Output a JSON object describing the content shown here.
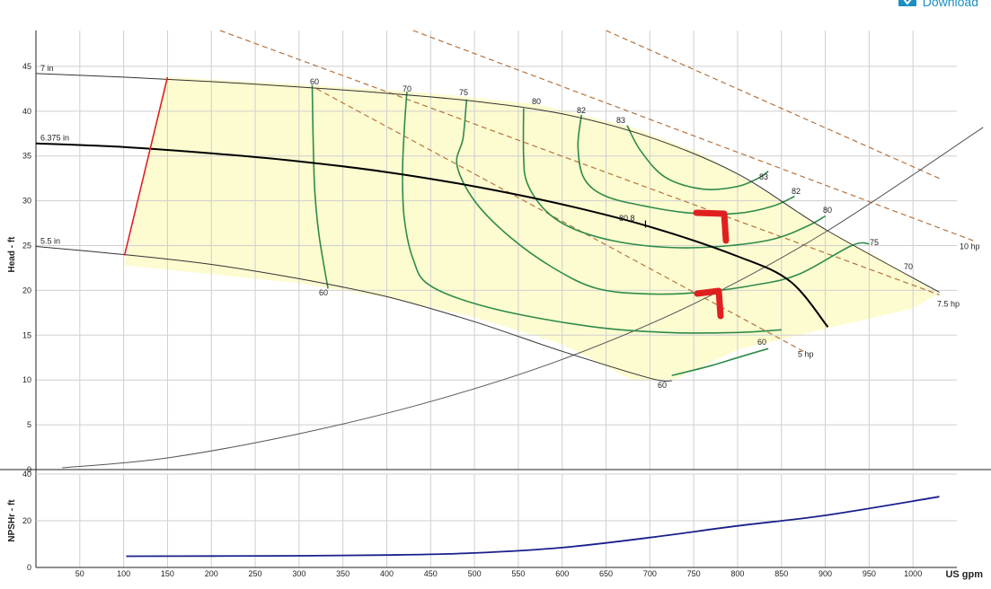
{
  "download": {
    "label": "Download"
  },
  "colors": {
    "envelope": "#fdfbd0",
    "grid": "#cfcfcf",
    "impeller": "#333333",
    "design": "#000000",
    "efficiency": "#2e8b4a",
    "power": "#b5733e",
    "system": "#555555",
    "min_dia": "#e02020",
    "npsh": "#1a1f8c",
    "annotation": "#e02020"
  },
  "chart_data": [
    {
      "type": "line",
      "title": "",
      "xlabel": "US gpm",
      "ylabel": "Head - ft",
      "xlim": [
        0,
        1050
      ],
      "ylim": [
        0,
        49
      ],
      "x_ticks": [
        50,
        100,
        150,
        200,
        250,
        300,
        350,
        400,
        450,
        500,
        550,
        600,
        650,
        700,
        750,
        800,
        850,
        900,
        950,
        1000
      ],
      "y_ticks": [
        0,
        5,
        10,
        15,
        20,
        25,
        30,
        35,
        40,
        45
      ],
      "impeller_curves": [
        {
          "label": "7 in",
          "points": [
            [
              0,
              44.2
            ],
            [
              100,
              43.8
            ],
            [
              200,
              43.3
            ],
            [
              300,
              42.7
            ],
            [
              400,
              42
            ],
            [
              500,
              41.1
            ],
            [
              600,
              39.7
            ],
            [
              700,
              37.1
            ],
            [
              800,
              33
            ],
            [
              900,
              26.8
            ],
            [
              1030,
              19.8
            ]
          ]
        },
        {
          "label": "6.375 in",
          "points": [
            [
              0,
              36.4
            ],
            [
              100,
              36
            ],
            [
              200,
              35.3
            ],
            [
              300,
              34.4
            ],
            [
              400,
              33.2
            ],
            [
              500,
              31.6
            ],
            [
              600,
              29.6
            ],
            [
              700,
              27.1
            ],
            [
              800,
              23.8
            ],
            [
              860,
              21
            ],
            [
              903,
              15.9
            ]
          ]
        },
        {
          "label": "5.5 in",
          "points": [
            [
              0,
              24.9
            ],
            [
              100,
              24
            ],
            [
              200,
              22.9
            ],
            [
              300,
              21.3
            ],
            [
              400,
              19.3
            ],
            [
              500,
              16.5
            ],
            [
              600,
              13.2
            ],
            [
              700,
              10.2
            ],
            [
              725,
              9.9
            ]
          ]
        }
      ],
      "design_curve": "6.375 in",
      "min_flow_line": [
        [
          101,
          23.9
        ],
        [
          150,
          43.8
        ]
      ],
      "envelope_points": [
        [
          101,
          23
        ],
        [
          150,
          43.8
        ],
        [
          300,
          43
        ],
        [
          450,
          42
        ],
        [
          570,
          40.8
        ],
        [
          630,
          39.4
        ],
        [
          680,
          38.2
        ],
        [
          760,
          35.2
        ],
        [
          840,
          30.6
        ],
        [
          900,
          26.8
        ],
        [
          960,
          23.7
        ],
        [
          1030,
          19.7
        ],
        [
          1000,
          18
        ],
        [
          900,
          15.7
        ],
        [
          800,
          13.4
        ],
        [
          725,
          9.9
        ],
        [
          680,
          10
        ],
        [
          600,
          14
        ],
        [
          500,
          17
        ],
        [
          400,
          19.2
        ],
        [
          300,
          20.8
        ],
        [
          200,
          21.8
        ],
        [
          101,
          22.8
        ]
      ],
      "efficiency_contours": [
        {
          "label": "60",
          "points": [
            [
              315,
              42.9
            ],
            [
              316,
              37
            ],
            [
              318,
              31
            ],
            [
              323,
              26
            ],
            [
              333,
              20.2
            ]
          ]
        },
        {
          "label": "70",
          "points": [
            [
              423,
              42.2
            ],
            [
              420,
              38
            ],
            [
              418,
              33
            ],
            [
              420,
              28
            ],
            [
              430,
              23.5
            ],
            [
              450,
              20.5
            ],
            [
              520,
              18
            ],
            [
              630,
              16
            ],
            [
              720,
              15.3
            ],
            [
              800,
              15.3
            ],
            [
              850,
              15.6
            ]
          ]
        },
        {
          "label": "75",
          "points": [
            [
              491,
              41.3
            ],
            [
              487,
              37
            ],
            [
              480,
              34
            ],
            [
              500,
              30
            ],
            [
              540,
              26
            ],
            [
              590,
              22.5
            ],
            [
              640,
              20.2
            ],
            [
              700,
              19.6
            ],
            [
              760,
              19.8
            ],
            [
              820,
              20.6
            ],
            [
              870,
              21.8
            ],
            [
              930,
              25
            ],
            [
              950,
              25.2
            ]
          ]
        },
        {
          "label": "80",
          "points": [
            [
              556,
              40.3
            ],
            [
              556,
              35
            ],
            [
              560,
              32
            ],
            [
              580,
              29
            ],
            [
              610,
              27
            ],
            [
              660,
              25.5
            ],
            [
              720,
              24.8
            ],
            [
              780,
              24.9
            ],
            [
              840,
              25.7
            ],
            [
              880,
              27.2
            ],
            [
              900,
              28.3
            ]
          ]
        },
        {
          "label": "82",
          "points": [
            [
              622,
              39.6
            ],
            [
              618,
              36
            ],
            [
              625,
              32.5
            ],
            [
              650,
              30.5
            ],
            [
              700,
              29.3
            ],
            [
              750,
              28.6
            ],
            [
              800,
              28.6
            ],
            [
              840,
              29.4
            ],
            [
              865,
              30.5
            ]
          ]
        },
        {
          "label": "83",
          "points": [
            [
              674,
              38.4
            ],
            [
              690,
              35.5
            ],
            [
              718,
              32.6
            ],
            [
              760,
              31.3
            ],
            [
              800,
              31.6
            ],
            [
              825,
              32.6
            ],
            [
              835,
              33.3
            ]
          ]
        },
        {
          "label": "60",
          "points": [
            [
              725,
              10.5
            ],
            [
              770,
              11.6
            ],
            [
              800,
              12.5
            ],
            [
              835,
              13.5
            ]
          ]
        }
      ],
      "efficiency_labels": [
        "60",
        "70",
        "75",
        "80",
        "82",
        "83",
        "83",
        "82",
        "80",
        "75",
        "70",
        "60",
        "60",
        "60"
      ],
      "bep_label": "80.8",
      "power_lines": [
        {
          "label": "5 hp",
          "points": [
            [
              320,
              42.5
            ],
            [
              875,
              13.2
            ]
          ]
        },
        {
          "label": "7.5 hp",
          "points": [
            [
              210,
              49
            ],
            [
              1030,
              19.5
            ]
          ]
        },
        {
          "label": "10 hp",
          "points": [
            [
              430,
              49
            ],
            [
              1070,
              25.5
            ]
          ]
        },
        {
          "label": "",
          "points": [
            [
              650,
              49
            ],
            [
              1030,
              32.5
            ]
          ]
        }
      ],
      "system_curve": [
        [
          30,
          0.2
        ],
        [
          150,
          1.3
        ],
        [
          300,
          4
        ],
        [
          450,
          7.6
        ],
        [
          600,
          12.3
        ],
        [
          750,
          18.5
        ],
        [
          900,
          26.5
        ],
        [
          1080,
          38.2
        ]
      ],
      "annotations": [
        "red-hand-drawn-marker",
        "red-hand-drawn-marker"
      ]
    },
    {
      "type": "line",
      "title": "",
      "xlabel": "US gpm",
      "ylabel": "NPSHr - ft",
      "xlim": [
        0,
        1050
      ],
      "ylim": [
        0,
        40
      ],
      "y_ticks": [
        0,
        20,
        40
      ],
      "series": [
        {
          "points": [
            [
              103,
              4.8
            ],
            [
              200,
              4.9
            ],
            [
              300,
              5
            ],
            [
              400,
              5.3
            ],
            [
              500,
              6.2
            ],
            [
              600,
              8.5
            ],
            [
              700,
              12.8
            ],
            [
              800,
              17.8
            ],
            [
              900,
              22.3
            ],
            [
              1030,
              30.3
            ]
          ]
        }
      ]
    }
  ]
}
